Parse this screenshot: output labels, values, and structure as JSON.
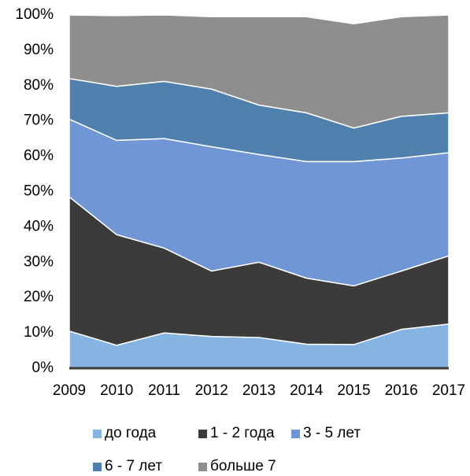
{
  "chart_data": {
    "type": "stacked_area",
    "categories": [
      "2009",
      "2010",
      "2011",
      "2012",
      "2013",
      "2014",
      "2015",
      "2016",
      "2017"
    ],
    "series": [
      {
        "name": "до года",
        "color": "#85b4e2",
        "values": [
          10.5,
          6.5,
          10,
          9,
          8.7,
          6.8,
          6.7,
          11,
          12.5
        ]
      },
      {
        "name": "1 - 2 года",
        "color": "#3b3b3b",
        "values": [
          38,
          31.3,
          24,
          18.5,
          21.3,
          18.7,
          16.6,
          16.5,
          19.3
        ]
      },
      {
        "name": "3 - 5 лет",
        "color": "#7096d6",
        "values": [
          22,
          26.7,
          31,
          35.2,
          30.5,
          33,
          35.2,
          32,
          29.2
        ]
      },
      {
        "name": "6 - 7 лет",
        "color": "#5081ae",
        "values": [
          11.5,
          15.3,
          16.2,
          16.3,
          14,
          13.8,
          9.5,
          11.8,
          11.3
        ]
      },
      {
        "name": "больше 7",
        "color": "#8e8e8e",
        "values": [
          18,
          20,
          18.8,
          20.5,
          25,
          27.2,
          29.5,
          28.2,
          27.7
        ]
      }
    ],
    "ylim": [
      0,
      100
    ],
    "yticks": [
      {
        "value": 0,
        "label": "0%"
      },
      {
        "value": 10,
        "label": "10%"
      },
      {
        "value": 20,
        "label": "20%"
      },
      {
        "value": 30,
        "label": "30%"
      },
      {
        "value": 40,
        "label": "40%"
      },
      {
        "value": 50,
        "label": "50%"
      },
      {
        "value": 60,
        "label": "60%"
      },
      {
        "value": 70,
        "label": "70%"
      },
      {
        "value": 80,
        "label": "80%"
      },
      {
        "value": 90,
        "label": "90%"
      },
      {
        "value": 100,
        "label": "100%"
      }
    ],
    "legend": "bottom"
  }
}
